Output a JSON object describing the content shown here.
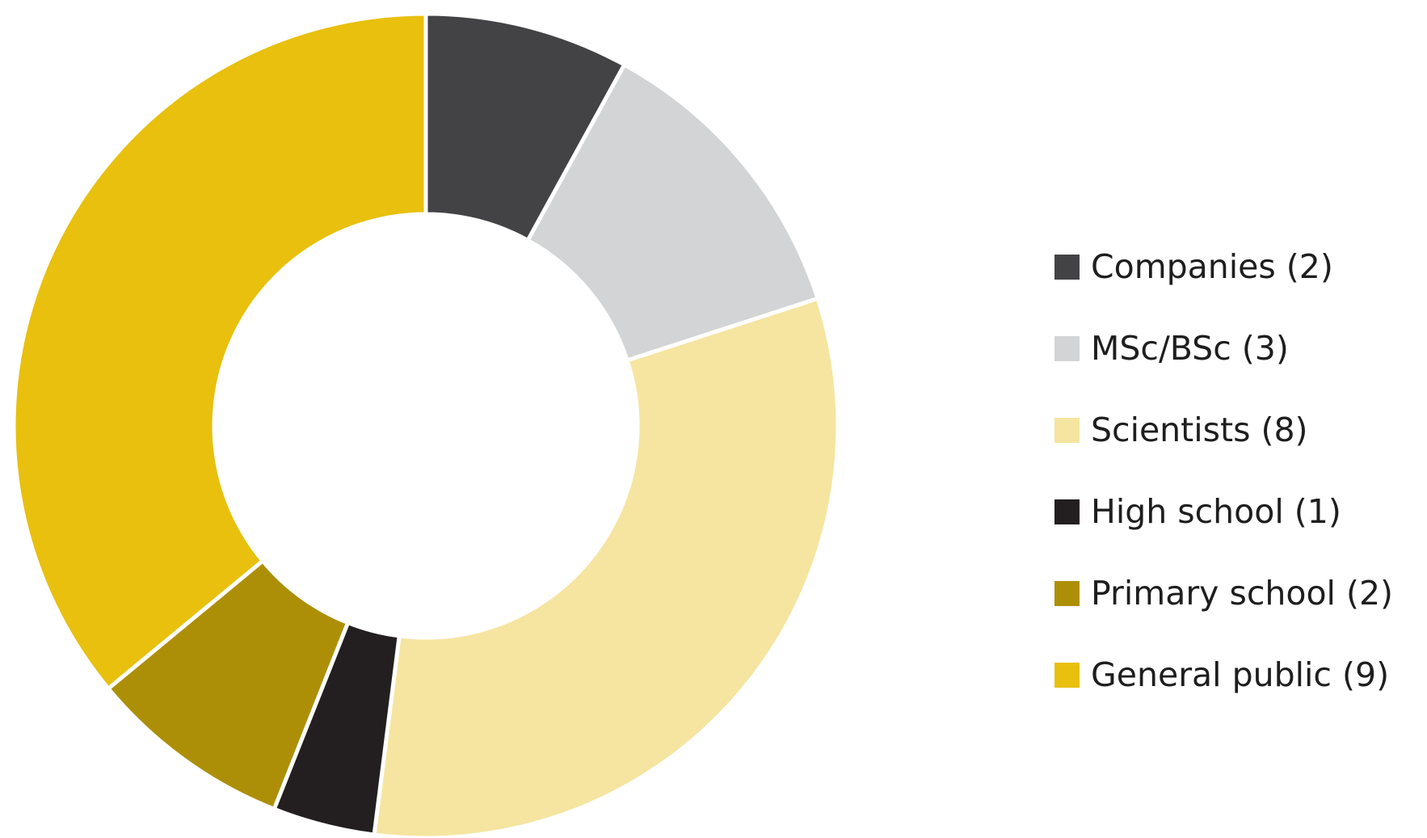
{
  "chart_data": {
    "type": "pie",
    "donut": true,
    "title": "",
    "slices": [
      {
        "label": "Companies (2)",
        "value": 2,
        "color": "#434345"
      },
      {
        "label": "MSc/BSc (3)",
        "value": 3,
        "color": "#d3d4d5"
      },
      {
        "label": "Scientists (8)",
        "value": 8,
        "color": "#f5e5a0"
      },
      {
        "label": "High school (1)",
        "value": 1,
        "color": "#231f20"
      },
      {
        "label": "Primary school (2)",
        "value": 2,
        "color": "#ad8f07"
      },
      {
        "label": "General public (9)",
        "value": 9,
        "color": "#e8c00d"
      }
    ],
    "legend_position": "right",
    "start_angle": "top",
    "direction": "clockwise"
  }
}
